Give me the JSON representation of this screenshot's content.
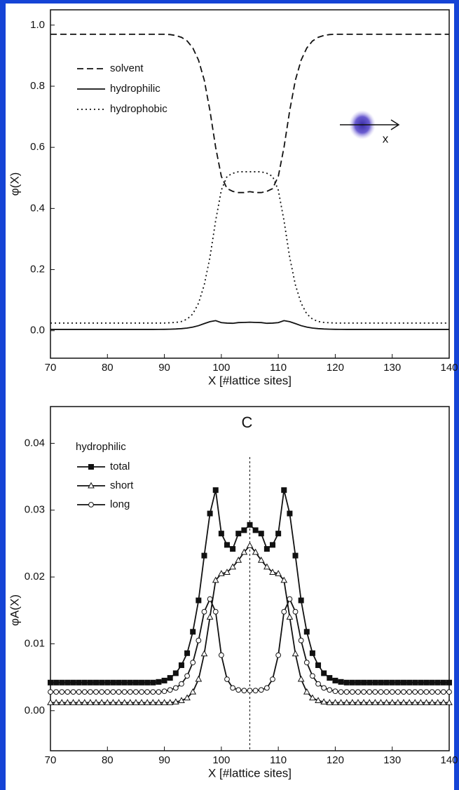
{
  "chart_data": [
    {
      "type": "line",
      "x": [
        70,
        71,
        72,
        73,
        74,
        75,
        76,
        77,
        78,
        79,
        80,
        81,
        82,
        83,
        84,
        85,
        86,
        87,
        88,
        89,
        90,
        91,
        92,
        93,
        94,
        95,
        96,
        97,
        98,
        99,
        100,
        101,
        102,
        103,
        104,
        105,
        106,
        107,
        108,
        109,
        110,
        111,
        112,
        113,
        114,
        115,
        116,
        117,
        118,
        119,
        120,
        121,
        122,
        123,
        124,
        125,
        126,
        127,
        128,
        129,
        130,
        131,
        132,
        133,
        134,
        135,
        136,
        137,
        138,
        139,
        140
      ],
      "series": [
        {
          "name": "solvent",
          "color": "#111111",
          "dash": "dashed",
          "values": [
            0.97,
            0.97,
            0.97,
            0.97,
            0.97,
            0.97,
            0.97,
            0.97,
            0.97,
            0.97,
            0.97,
            0.97,
            0.97,
            0.97,
            0.97,
            0.97,
            0.97,
            0.97,
            0.97,
            0.97,
            0.97,
            0.969,
            0.966,
            0.96,
            0.948,
            0.925,
            0.885,
            0.82,
            0.72,
            0.6,
            0.505,
            0.465,
            0.456,
            0.452,
            0.452,
            0.455,
            0.452,
            0.452,
            0.456,
            0.465,
            0.505,
            0.6,
            0.72,
            0.82,
            0.885,
            0.925,
            0.948,
            0.96,
            0.966,
            0.969,
            0.97,
            0.97,
            0.97,
            0.97,
            0.97,
            0.97,
            0.97,
            0.97,
            0.97,
            0.97,
            0.97,
            0.97,
            0.97,
            0.97,
            0.97,
            0.97,
            0.97,
            0.97,
            0.97,
            0.97,
            0.97
          ]
        },
        {
          "name": "hydrophilic",
          "color": "#111111",
          "dash": "solid",
          "values": [
            0.0042,
            0.0042,
            0.0042,
            0.0042,
            0.0042,
            0.0042,
            0.0042,
            0.0042,
            0.0042,
            0.0042,
            0.0042,
            0.0042,
            0.0042,
            0.0042,
            0.0042,
            0.0042,
            0.0042,
            0.0042,
            0.0042,
            0.0043,
            0.0045,
            0.0049,
            0.0056,
            0.0068,
            0.0086,
            0.0118,
            0.0165,
            0.0232,
            0.0295,
            0.033,
            0.0265,
            0.0248,
            0.0242,
            0.0265,
            0.027,
            0.0278,
            0.027,
            0.0265,
            0.0242,
            0.0248,
            0.0265,
            0.033,
            0.0295,
            0.0232,
            0.0165,
            0.0118,
            0.0086,
            0.0068,
            0.0056,
            0.0049,
            0.0045,
            0.0043,
            0.0042,
            0.0042,
            0.0042,
            0.0042,
            0.0042,
            0.0042,
            0.0042,
            0.0042,
            0.0042,
            0.0042,
            0.0042,
            0.0042,
            0.0042,
            0.0042,
            0.0042,
            0.0042,
            0.0042,
            0.0042,
            0.0042
          ]
        },
        {
          "name": "hydrophobic",
          "color": "#111111",
          "dash": "dotted",
          "values": [
            0.025,
            0.025,
            0.025,
            0.025,
            0.025,
            0.025,
            0.025,
            0.025,
            0.025,
            0.025,
            0.025,
            0.025,
            0.025,
            0.025,
            0.025,
            0.025,
            0.025,
            0.025,
            0.025,
            0.025,
            0.025,
            0.026,
            0.027,
            0.03,
            0.038,
            0.055,
            0.09,
            0.15,
            0.24,
            0.36,
            0.46,
            0.505,
            0.515,
            0.52,
            0.52,
            0.52,
            0.52,
            0.52,
            0.515,
            0.505,
            0.46,
            0.36,
            0.24,
            0.15,
            0.09,
            0.055,
            0.038,
            0.03,
            0.027,
            0.026,
            0.025,
            0.025,
            0.025,
            0.025,
            0.025,
            0.025,
            0.025,
            0.025,
            0.025,
            0.025,
            0.025,
            0.025,
            0.025,
            0.025,
            0.025,
            0.025,
            0.025,
            0.025,
            0.025,
            0.025,
            0.025
          ]
        }
      ],
      "xlabel": "X [#lattice sites]",
      "ylabel": "φ(X)",
      "annotation": "x",
      "xlim": [
        70,
        140
      ],
      "ylim": [
        -0.09,
        1.05
      ],
      "xticks": [
        70,
        80,
        90,
        100,
        110,
        120,
        130,
        140
      ],
      "yticks": [
        {
          "value": 0,
          "label": "0.0"
        },
        0.2,
        0.4,
        0.6,
        0.8,
        {
          "value": 1,
          "label": "1.0"
        }
      ],
      "legend": "upper left"
    },
    {
      "type": "line",
      "title": "C",
      "legend_title": "hydrophilic",
      "x": [
        70,
        71,
        72,
        73,
        74,
        75,
        76,
        77,
        78,
        79,
        80,
        81,
        82,
        83,
        84,
        85,
        86,
        87,
        88,
        89,
        90,
        91,
        92,
        93,
        94,
        95,
        96,
        97,
        98,
        99,
        100,
        101,
        102,
        103,
        104,
        105,
        106,
        107,
        108,
        109,
        110,
        111,
        112,
        113,
        114,
        115,
        116,
        117,
        118,
        119,
        120,
        121,
        122,
        123,
        124,
        125,
        126,
        127,
        128,
        129,
        130,
        131,
        132,
        133,
        134,
        135,
        136,
        137,
        138,
        139,
        140
      ],
      "series": [
        {
          "name": "total",
          "color": "#111111",
          "marker": "square-filled",
          "values": [
            0.0042,
            0.0042,
            0.0042,
            0.0042,
            0.0042,
            0.0042,
            0.0042,
            0.0042,
            0.0042,
            0.0042,
            0.0042,
            0.0042,
            0.0042,
            0.0042,
            0.0042,
            0.0042,
            0.0042,
            0.0042,
            0.0042,
            0.0043,
            0.0045,
            0.0049,
            0.0056,
            0.0068,
            0.0086,
            0.0118,
            0.0165,
            0.0232,
            0.0295,
            0.033,
            0.0265,
            0.0248,
            0.0242,
            0.0265,
            0.027,
            0.0278,
            0.027,
            0.0265,
            0.0242,
            0.0248,
            0.0265,
            0.033,
            0.0295,
            0.0232,
            0.0165,
            0.0118,
            0.0086,
            0.0068,
            0.0056,
            0.0049,
            0.0045,
            0.0043,
            0.0042,
            0.0042,
            0.0042,
            0.0042,
            0.0042,
            0.0042,
            0.0042,
            0.0042,
            0.0042,
            0.0042,
            0.0042,
            0.0042,
            0.0042,
            0.0042,
            0.0042,
            0.0042,
            0.0042,
            0.0042,
            0.0042
          ]
        },
        {
          "name": "short",
          "color": "#111111",
          "marker": "triangle-open",
          "values": [
            0.0012,
            0.0012,
            0.0012,
            0.0012,
            0.0012,
            0.0012,
            0.0012,
            0.0012,
            0.0012,
            0.0012,
            0.0012,
            0.0012,
            0.0012,
            0.0012,
            0.0012,
            0.0012,
            0.0012,
            0.0012,
            0.0012,
            0.0012,
            0.0012,
            0.0012,
            0.0013,
            0.0015,
            0.0019,
            0.0028,
            0.0047,
            0.0085,
            0.014,
            0.0195,
            0.0205,
            0.0207,
            0.0215,
            0.0225,
            0.0237,
            0.0247,
            0.0237,
            0.0225,
            0.0215,
            0.0207,
            0.0205,
            0.0195,
            0.014,
            0.0085,
            0.0047,
            0.0028,
            0.0019,
            0.0015,
            0.0013,
            0.0012,
            0.0012,
            0.0012,
            0.0012,
            0.0012,
            0.0012,
            0.0012,
            0.0012,
            0.0012,
            0.0012,
            0.0012,
            0.0012,
            0.0012,
            0.0012,
            0.0012,
            0.0012,
            0.0012,
            0.0012,
            0.0012,
            0.0012,
            0.0012,
            0.0012
          ]
        },
        {
          "name": "long",
          "color": "#111111",
          "marker": "circle-open",
          "values": [
            0.0028,
            0.0028,
            0.0028,
            0.0028,
            0.0028,
            0.0028,
            0.0028,
            0.0028,
            0.0028,
            0.0028,
            0.0028,
            0.0028,
            0.0028,
            0.0028,
            0.0028,
            0.0028,
            0.0028,
            0.0028,
            0.0028,
            0.0028,
            0.0029,
            0.0031,
            0.0034,
            0.004,
            0.0052,
            0.0072,
            0.0105,
            0.0148,
            0.0167,
            0.0148,
            0.0083,
            0.0047,
            0.0034,
            0.0031,
            0.003,
            0.003,
            0.003,
            0.0031,
            0.0034,
            0.0047,
            0.0083,
            0.0148,
            0.0167,
            0.0148,
            0.0105,
            0.0072,
            0.0052,
            0.004,
            0.0034,
            0.0031,
            0.0029,
            0.0028,
            0.0028,
            0.0028,
            0.0028,
            0.0028,
            0.0028,
            0.0028,
            0.0028,
            0.0028,
            0.0028,
            0.0028,
            0.0028,
            0.0028,
            0.0028,
            0.0028,
            0.0028,
            0.0028,
            0.0028,
            0.0028,
            0.0028
          ]
        }
      ],
      "vline": 105,
      "xlabel": "X [#lattice sites]",
      "ylabel": "φA(X)",
      "xlim": [
        70,
        140
      ],
      "ylim": [
        -0.006,
        0.0455
      ],
      "xticks": [
        70,
        80,
        90,
        100,
        110,
        120,
        130,
        140
      ],
      "yticks": [
        {
          "value": 0,
          "label": "0.00"
        },
        {
          "value": 0.01,
          "label": "0.01"
        },
        {
          "value": 0.02,
          "label": "0.02"
        },
        {
          "value": 0.03,
          "label": "0.03"
        },
        {
          "value": 0.04,
          "label": "0.04"
        }
      ],
      "legend": "upper left"
    }
  ]
}
